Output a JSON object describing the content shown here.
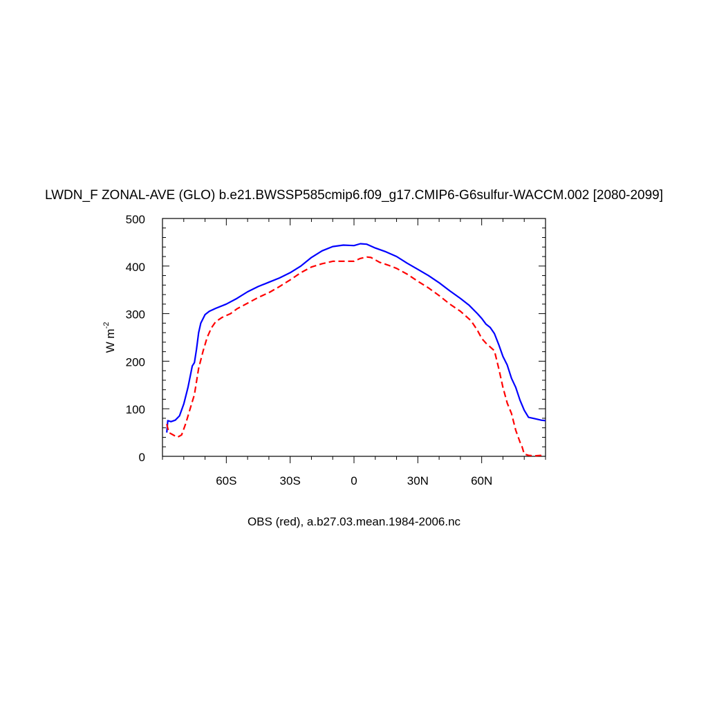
{
  "chart_data": {
    "type": "line",
    "title": "LWDN_F ZONAL-AVE (GLO) b.e21.BWSSP585cmip6.f09_g17.CMIP6-G6sulfur-WACCM.002 [2080-2099]",
    "ylabel": "W m",
    "ylabel_sup": "-2",
    "xlabel": "",
    "caption": "OBS (red), a.b27.03.mean.1984-2006.nc",
    "xlim": [
      -90,
      90
    ],
    "ylim": [
      0,
      500
    ],
    "yticks": [
      0,
      100,
      200,
      300,
      400,
      500
    ],
    "yticklabels": [
      "0",
      "100",
      "200",
      "300",
      "400",
      "500"
    ],
    "xticks": [
      -60,
      -30,
      0,
      30,
      60
    ],
    "xticklabels": [
      "60S",
      "30S",
      "0",
      "30N",
      "60N"
    ],
    "grid": false,
    "series": [
      {
        "color": "#0000ff",
        "dash": "solid",
        "points": [
          [
            -88,
            50
          ],
          [
            -87.5,
            75
          ],
          [
            -86,
            73
          ],
          [
            -84,
            76
          ],
          [
            -82,
            85
          ],
          [
            -80,
            110
          ],
          [
            -78,
            145
          ],
          [
            -76,
            190
          ],
          [
            -75,
            197
          ],
          [
            -74,
            225
          ],
          [
            -73,
            260
          ],
          [
            -72,
            280
          ],
          [
            -70,
            298
          ],
          [
            -68,
            305
          ],
          [
            -65,
            311
          ],
          [
            -60,
            320
          ],
          [
            -55,
            332
          ],
          [
            -50,
            346
          ],
          [
            -45,
            357
          ],
          [
            -40,
            366
          ],
          [
            -35,
            375
          ],
          [
            -30,
            386
          ],
          [
            -25,
            400
          ],
          [
            -20,
            418
          ],
          [
            -15,
            432
          ],
          [
            -10,
            441
          ],
          [
            -5,
            444
          ],
          [
            0,
            443
          ],
          [
            3,
            447
          ],
          [
            6,
            446
          ],
          [
            10,
            438
          ],
          [
            15,
            430
          ],
          [
            20,
            420
          ],
          [
            25,
            406
          ],
          [
            30,
            393
          ],
          [
            35,
            380
          ],
          [
            40,
            365
          ],
          [
            45,
            348
          ],
          [
            50,
            332
          ],
          [
            54,
            318
          ],
          [
            58,
            300
          ],
          [
            60,
            290
          ],
          [
            62,
            278
          ],
          [
            64,
            271
          ],
          [
            66,
            258
          ],
          [
            68,
            235
          ],
          [
            70,
            210
          ],
          [
            72,
            192
          ],
          [
            74,
            164
          ],
          [
            76,
            145
          ],
          [
            78,
            118
          ],
          [
            80,
            97
          ],
          [
            82,
            82
          ],
          [
            85,
            79
          ],
          [
            88,
            76
          ],
          [
            90,
            75
          ]
        ]
      },
      {
        "color": "#ff0000",
        "dash": "dashed",
        "points": [
          [
            -88,
            68
          ],
          [
            -87,
            50
          ],
          [
            -85,
            45
          ],
          [
            -83,
            40
          ],
          [
            -81,
            45
          ],
          [
            -79,
            70
          ],
          [
            -77,
            100
          ],
          [
            -75,
            130
          ],
          [
            -73,
            185
          ],
          [
            -71,
            220
          ],
          [
            -69,
            250
          ],
          [
            -67,
            270
          ],
          [
            -65,
            283
          ],
          [
            -62,
            292
          ],
          [
            -58,
            300
          ],
          [
            -55,
            310
          ],
          [
            -50,
            322
          ],
          [
            -45,
            334
          ],
          [
            -40,
            344
          ],
          [
            -35,
            357
          ],
          [
            -30,
            371
          ],
          [
            -25,
            386
          ],
          [
            -20,
            398
          ],
          [
            -15,
            405
          ],
          [
            -10,
            410
          ],
          [
            -5,
            410
          ],
          [
            0,
            410
          ],
          [
            3,
            416
          ],
          [
            6,
            419
          ],
          [
            8,
            418
          ],
          [
            12,
            408
          ],
          [
            16,
            402
          ],
          [
            20,
            395
          ],
          [
            25,
            383
          ],
          [
            30,
            368
          ],
          [
            35,
            354
          ],
          [
            40,
            338
          ],
          [
            45,
            320
          ],
          [
            50,
            305
          ],
          [
            55,
            285
          ],
          [
            58,
            265
          ],
          [
            60,
            248
          ],
          [
            62,
            238
          ],
          [
            64,
            230
          ],
          [
            66,
            222
          ],
          [
            68,
            185
          ],
          [
            70,
            145
          ],
          [
            72,
            112
          ],
          [
            74,
            90
          ],
          [
            76,
            55
          ],
          [
            78,
            30
          ],
          [
            79,
            20
          ],
          [
            80,
            5
          ],
          [
            82,
            2
          ],
          [
            85,
            1
          ],
          [
            88,
            2
          ],
          [
            89,
            4
          ]
        ]
      }
    ]
  }
}
